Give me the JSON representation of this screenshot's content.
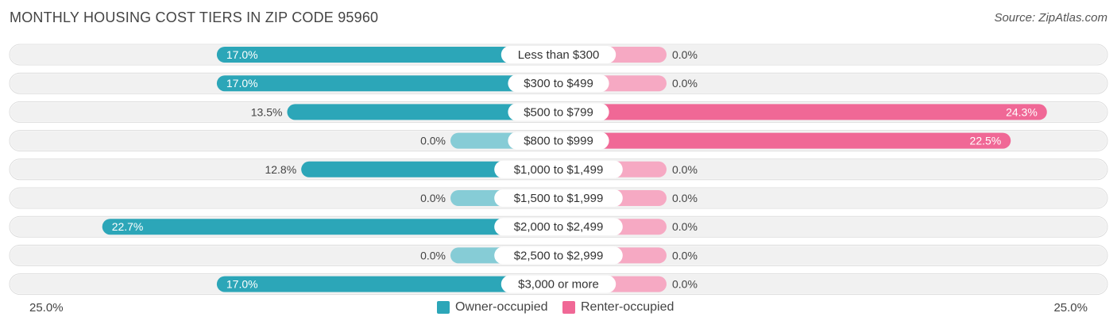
{
  "header": {
    "title": "MONTHLY HOUSING COST TIERS IN ZIP CODE 95960",
    "source": "Source: ZipAtlas.com"
  },
  "colors": {
    "owner": "#2ca6b8",
    "owner_light": "#86ccd6",
    "renter": "#f06896",
    "renter_light": "#f6a9c3",
    "track": "#eeeeee"
  },
  "chart_data": {
    "type": "bar",
    "orientation": "horizontal-diverging",
    "categories": [
      "Less than $300",
      "$300 to $499",
      "$500 to $799",
      "$800 to $999",
      "$1,000 to $1,499",
      "$1,500 to $1,999",
      "$2,000 to $2,499",
      "$2,500 to $2,999",
      "$3,000 or more"
    ],
    "series": [
      {
        "name": "Owner-occupied",
        "values": [
          17.0,
          17.0,
          13.5,
          0.0,
          12.8,
          0.0,
          22.7,
          0.0,
          17.0
        ]
      },
      {
        "name": "Renter-occupied",
        "values": [
          0.0,
          0.0,
          24.3,
          22.5,
          0.0,
          0.0,
          0.0,
          0.0,
          0.0
        ]
      }
    ],
    "value_labels": {
      "owner": [
        "17.0%",
        "17.0%",
        "13.5%",
        "0.0%",
        "12.8%",
        "0.0%",
        "22.7%",
        "0.0%",
        "17.0%"
      ],
      "renter": [
        "0.0%",
        "0.0%",
        "24.3%",
        "22.5%",
        "0.0%",
        "0.0%",
        "0.0%",
        "0.0%",
        "0.0%"
      ]
    },
    "axis_max": 25.0,
    "axis_labels": {
      "left": "25.0%",
      "right": "25.0%"
    },
    "legend_position": "bottom-center"
  }
}
